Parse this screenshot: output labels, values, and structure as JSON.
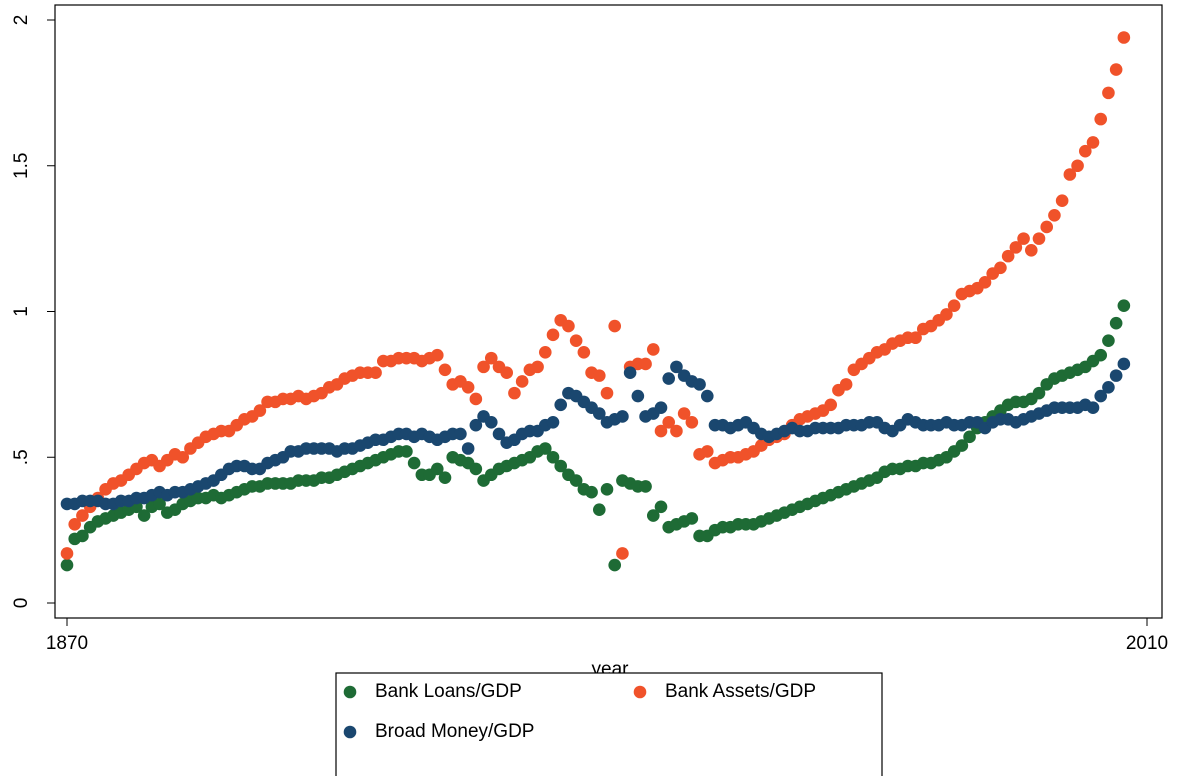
{
  "chart_data": {
    "type": "scatter",
    "x_label": "year",
    "x": [
      1870,
      1871,
      1872,
      1873,
      1874,
      1875,
      1876,
      1877,
      1878,
      1879,
      1880,
      1881,
      1882,
      1883,
      1884,
      1885,
      1886,
      1887,
      1888,
      1889,
      1890,
      1891,
      1892,
      1893,
      1894,
      1895,
      1896,
      1897,
      1898,
      1899,
      1900,
      1901,
      1902,
      1903,
      1904,
      1905,
      1906,
      1907,
      1908,
      1909,
      1910,
      1911,
      1912,
      1913,
      1914,
      1915,
      1916,
      1917,
      1918,
      1919,
      1920,
      1921,
      1922,
      1923,
      1924,
      1925,
      1926,
      1927,
      1928,
      1929,
      1930,
      1931,
      1932,
      1933,
      1934,
      1935,
      1936,
      1937,
      1938,
      1939,
      1940,
      1941,
      1942,
      1943,
      1944,
      1945,
      1946,
      1947,
      1948,
      1949,
      1950,
      1951,
      1952,
      1953,
      1954,
      1955,
      1956,
      1957,
      1958,
      1959,
      1960,
      1961,
      1962,
      1963,
      1964,
      1965,
      1966,
      1967,
      1968,
      1969,
      1970,
      1971,
      1972,
      1973,
      1974,
      1975,
      1976,
      1977,
      1978,
      1979,
      1980,
      1981,
      1982,
      1983,
      1984,
      1985,
      1986,
      1987,
      1988,
      1989,
      1990,
      1991,
      1992,
      1993,
      1994,
      1995,
      1996,
      1997,
      1998,
      1999,
      2000,
      2001,
      2002,
      2003,
      2004,
      2005,
      2006,
      2007
    ],
    "series": [
      {
        "name": "Bank Loans/GDP",
        "color": "#1e6b35",
        "values": [
          0.13,
          0.22,
          0.23,
          0.26,
          0.28,
          0.29,
          0.3,
          0.31,
          0.32,
          0.33,
          0.3,
          0.33,
          0.34,
          0.31,
          0.32,
          0.34,
          0.35,
          0.36,
          0.36,
          0.37,
          0.36,
          0.37,
          0.38,
          0.39,
          0.4,
          0.4,
          0.41,
          0.41,
          0.41,
          0.41,
          0.42,
          0.42,
          0.42,
          0.43,
          0.43,
          0.44,
          0.45,
          0.46,
          0.47,
          0.48,
          0.49,
          0.5,
          0.51,
          0.52,
          0.52,
          0.48,
          0.44,
          0.44,
          0.46,
          0.43,
          0.5,
          0.49,
          0.48,
          0.46,
          0.42,
          0.44,
          0.46,
          0.47,
          0.48,
          0.49,
          0.5,
          0.52,
          0.53,
          0.5,
          0.47,
          0.44,
          0.42,
          0.39,
          0.38,
          0.32,
          0.39,
          0.13,
          0.42,
          0.41,
          0.4,
          0.4,
          0.3,
          0.33,
          0.26,
          0.27,
          0.28,
          0.29,
          0.23,
          0.23,
          0.25,
          0.26,
          0.26,
          0.27,
          0.27,
          0.27,
          0.28,
          0.29,
          0.3,
          0.31,
          0.32,
          0.33,
          0.34,
          0.35,
          0.36,
          0.37,
          0.38,
          0.39,
          0.4,
          0.41,
          0.42,
          0.43,
          0.45,
          0.46,
          0.46,
          0.47,
          0.47,
          0.48,
          0.48,
          0.49,
          0.5,
          0.52,
          0.54,
          0.57,
          0.6,
          0.62,
          0.64,
          0.66,
          0.68,
          0.69,
          0.69,
          0.7,
          0.72,
          0.75,
          0.77,
          0.78,
          0.79,
          0.8,
          0.81,
          0.83,
          0.85,
          0.9,
          0.96,
          1.02
        ]
      },
      {
        "name": "Bank Assets/GDP",
        "color": "#f0522a",
        "values": [
          0.17,
          0.27,
          0.3,
          0.33,
          0.36,
          0.39,
          0.41,
          0.42,
          0.44,
          0.46,
          0.48,
          0.49,
          0.47,
          0.49,
          0.51,
          0.5,
          0.53,
          0.55,
          0.57,
          0.58,
          0.59,
          0.59,
          0.61,
          0.63,
          0.64,
          0.66,
          0.69,
          0.69,
          0.7,
          0.7,
          0.71,
          0.7,
          0.71,
          0.72,
          0.74,
          0.75,
          0.77,
          0.78,
          0.79,
          0.79,
          0.79,
          0.83,
          0.83,
          0.84,
          0.84,
          0.84,
          0.83,
          0.84,
          0.85,
          0.8,
          0.75,
          0.76,
          0.74,
          0.7,
          0.81,
          0.84,
          0.81,
          0.79,
          0.72,
          0.76,
          0.8,
          0.81,
          0.86,
          0.92,
          0.97,
          0.95,
          0.9,
          0.86,
          0.79,
          0.78,
          0.72,
          0.95,
          0.17,
          0.81,
          0.82,
          0.82,
          0.87,
          0.59,
          0.62,
          0.59,
          0.65,
          0.62,
          0.51,
          0.52,
          0.48,
          0.49,
          0.5,
          0.5,
          0.51,
          0.52,
          0.54,
          0.56,
          0.57,
          0.58,
          0.61,
          0.63,
          0.64,
          0.65,
          0.66,
          0.68,
          0.73,
          0.75,
          0.8,
          0.82,
          0.84,
          0.86,
          0.87,
          0.89,
          0.9,
          0.91,
          0.91,
          0.94,
          0.95,
          0.97,
          0.99,
          1.02,
          1.06,
          1.07,
          1.08,
          1.1,
          1.13,
          1.15,
          1.19,
          1.22,
          1.25,
          1.21,
          1.25,
          1.29,
          1.33,
          1.38,
          1.47,
          1.5,
          1.55,
          1.58,
          1.66,
          1.75,
          1.83,
          1.94
        ]
      },
      {
        "name": "Broad Money/GDP",
        "color": "#1a476f",
        "values": [
          0.34,
          0.34,
          0.35,
          0.35,
          0.35,
          0.34,
          0.34,
          0.35,
          0.35,
          0.36,
          0.36,
          0.37,
          0.38,
          0.37,
          0.38,
          0.38,
          0.39,
          0.4,
          0.41,
          0.42,
          0.44,
          0.46,
          0.47,
          0.47,
          0.46,
          0.46,
          0.48,
          0.49,
          0.5,
          0.52,
          0.52,
          0.53,
          0.53,
          0.53,
          0.53,
          0.52,
          0.53,
          0.53,
          0.54,
          0.55,
          0.56,
          0.56,
          0.57,
          0.58,
          0.58,
          0.57,
          0.58,
          0.57,
          0.56,
          0.57,
          0.58,
          0.58,
          0.53,
          0.61,
          0.64,
          0.62,
          0.58,
          0.55,
          0.56,
          0.58,
          0.59,
          0.59,
          0.61,
          0.62,
          0.68,
          0.72,
          0.71,
          0.69,
          0.67,
          0.65,
          0.62,
          0.63,
          0.64,
          0.79,
          0.71,
          0.64,
          0.65,
          0.67,
          0.77,
          0.81,
          0.78,
          0.76,
          0.75,
          0.71,
          0.61,
          0.61,
          0.6,
          0.61,
          0.62,
          0.6,
          0.58,
          0.57,
          0.58,
          0.59,
          0.6,
          0.59,
          0.59,
          0.6,
          0.6,
          0.6,
          0.6,
          0.61,
          0.61,
          0.61,
          0.62,
          0.62,
          0.6,
          0.59,
          0.61,
          0.63,
          0.62,
          0.61,
          0.61,
          0.61,
          0.62,
          0.61,
          0.61,
          0.62,
          0.62,
          0.6,
          0.62,
          0.63,
          0.63,
          0.62,
          0.63,
          0.64,
          0.65,
          0.66,
          0.67,
          0.67,
          0.67,
          0.67,
          0.68,
          0.67,
          0.71,
          0.74,
          0.78,
          0.82
        ]
      }
    ],
    "xlim": [
      1870,
      2010
    ],
    "xticks": [
      1870,
      2010
    ],
    "ylim": [
      0,
      2
    ],
    "yticks": [
      0,
      {
        "value": 0.5,
        "label": ".5"
      },
      1,
      {
        "value": 1.5,
        "label": "1.5"
      },
      2
    ],
    "legend": "bottom"
  }
}
